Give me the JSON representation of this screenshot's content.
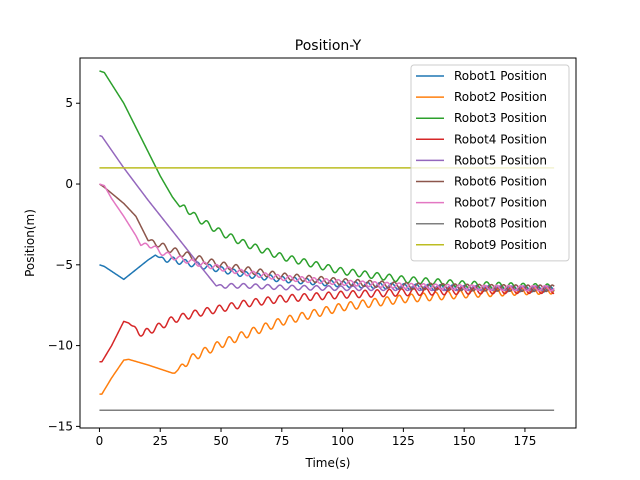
{
  "chart_data": {
    "type": "line",
    "title": "Position-Y",
    "xlabel": "Time(s)",
    "ylabel": "Position(m)",
    "xlim": [
      -8,
      196
    ],
    "ylim": [
      -15.1,
      7.8
    ],
    "xticks": [
      0,
      25,
      50,
      75,
      100,
      125,
      150,
      175
    ],
    "yticks": [
      -15,
      -10,
      -5,
      0,
      5
    ],
    "ytick_labels": [
      "−15",
      "−10",
      "−5",
      "0",
      "5"
    ],
    "grid": false,
    "legend_position": "top-right",
    "series": [
      {
        "name": "Robot1 Position",
        "color": "#1f77b4",
        "points": [
          [
            0,
            -5
          ],
          [
            2,
            -5.1
          ],
          [
            5,
            -5.4
          ],
          [
            10,
            -5.9
          ],
          [
            15,
            -5.3
          ],
          [
            20,
            -4.7
          ],
          [
            23,
            -4.4
          ],
          [
            25,
            -4.6
          ],
          [
            30,
            -4.7
          ],
          [
            40,
            -5.0
          ],
          [
            50,
            -5.3
          ],
          [
            60,
            -5.6
          ],
          [
            75,
            -5.9
          ],
          [
            100,
            -6.2
          ],
          [
            125,
            -6.35
          ],
          [
            150,
            -6.45
          ],
          [
            175,
            -6.5
          ],
          [
            187,
            -6.5
          ]
        ],
        "osc_start": 24,
        "osc_amp": 0.18,
        "osc_period": 5
      },
      {
        "name": "Robot2 Position",
        "color": "#ff7f0e",
        "points": [
          [
            0,
            -13
          ],
          [
            1,
            -13
          ],
          [
            5,
            -12
          ],
          [
            10,
            -10.9
          ],
          [
            12,
            -10.85
          ],
          [
            20,
            -11.2
          ],
          [
            30,
            -11.7
          ],
          [
            31,
            -11.7
          ],
          [
            35,
            -11.1
          ],
          [
            40,
            -10.6
          ],
          [
            50,
            -9.9
          ],
          [
            60,
            -9.3
          ],
          [
            75,
            -8.5
          ],
          [
            100,
            -7.6
          ],
          [
            125,
            -7.1
          ],
          [
            150,
            -6.8
          ],
          [
            175,
            -6.6
          ],
          [
            187,
            -6.55
          ]
        ],
        "osc_start": 32,
        "osc_amp": 0.25,
        "osc_period": 5
      },
      {
        "name": "Robot3 Position",
        "color": "#2ca02c",
        "points": [
          [
            0,
            7
          ],
          [
            2,
            6.9
          ],
          [
            10,
            5.0
          ],
          [
            20,
            2.0
          ],
          [
            25,
            0.5
          ],
          [
            30,
            -0.8
          ],
          [
            33,
            -1.4
          ],
          [
            35,
            -1.4
          ],
          [
            40,
            -2.1
          ],
          [
            50,
            -3.0
          ],
          [
            60,
            -3.7
          ],
          [
            75,
            -4.5
          ],
          [
            100,
            -5.4
          ],
          [
            125,
            -5.9
          ],
          [
            150,
            -6.2
          ],
          [
            175,
            -6.35
          ],
          [
            187,
            -6.4
          ]
        ],
        "osc_start": 33,
        "osc_amp": 0.2,
        "osc_period": 5
      },
      {
        "name": "Robot4 Position",
        "color": "#d62728",
        "points": [
          [
            0,
            -11
          ],
          [
            1,
            -11
          ],
          [
            5,
            -10
          ],
          [
            10,
            -8.5
          ],
          [
            12,
            -8.6
          ],
          [
            15,
            -9.0
          ],
          [
            18,
            -9.3
          ],
          [
            20,
            -9.1
          ],
          [
            25,
            -8.8
          ],
          [
            30,
            -8.4
          ],
          [
            40,
            -8.0
          ],
          [
            50,
            -7.7
          ],
          [
            60,
            -7.4
          ],
          [
            75,
            -7.1
          ],
          [
            100,
            -6.85
          ],
          [
            125,
            -6.7
          ],
          [
            150,
            -6.6
          ],
          [
            175,
            -6.55
          ],
          [
            187,
            -6.55
          ]
        ],
        "osc_start": 13,
        "osc_amp": 0.22,
        "osc_period": 5
      },
      {
        "name": "Robot5 Position",
        "color": "#9467bd",
        "points": [
          [
            0,
            3
          ],
          [
            1,
            2.95
          ],
          [
            10,
            1.0
          ],
          [
            20,
            -1.0
          ],
          [
            30,
            -2.9
          ],
          [
            40,
            -4.8
          ],
          [
            48,
            -6.3
          ],
          [
            50,
            -6.3
          ],
          [
            60,
            -6.3
          ],
          [
            75,
            -6.4
          ],
          [
            100,
            -6.45
          ],
          [
            125,
            -6.45
          ],
          [
            150,
            -6.45
          ],
          [
            175,
            -6.45
          ],
          [
            187,
            -6.45
          ]
        ],
        "osc_start": 48,
        "osc_amp": 0.14,
        "osc_period": 5
      },
      {
        "name": "Robot6 Position",
        "color": "#8c564b",
        "points": [
          [
            0,
            0
          ],
          [
            2,
            -0.2
          ],
          [
            10,
            -1.2
          ],
          [
            15,
            -2.0
          ],
          [
            20,
            -3.5
          ],
          [
            23,
            -3.6
          ],
          [
            25,
            -3.8
          ],
          [
            30,
            -4.1
          ],
          [
            40,
            -4.6
          ],
          [
            50,
            -5.0
          ],
          [
            60,
            -5.3
          ],
          [
            75,
            -5.7
          ],
          [
            100,
            -6.05
          ],
          [
            125,
            -6.3
          ],
          [
            150,
            -6.4
          ],
          [
            175,
            -6.45
          ],
          [
            187,
            -6.45
          ]
        ],
        "osc_start": 20,
        "osc_amp": 0.2,
        "osc_period": 5
      },
      {
        "name": "Robot7 Position",
        "color": "#e377c2",
        "points": [
          [
            0,
            0
          ],
          [
            2,
            -0.1
          ],
          [
            5,
            -0.9
          ],
          [
            10,
            -2.0
          ],
          [
            15,
            -3.2
          ],
          [
            17,
            -3.8
          ],
          [
            20,
            -3.7
          ],
          [
            25,
            -4.2
          ],
          [
            30,
            -4.5
          ],
          [
            40,
            -4.9
          ],
          [
            50,
            -5.2
          ],
          [
            60,
            -5.5
          ],
          [
            75,
            -5.8
          ],
          [
            100,
            -6.1
          ],
          [
            125,
            -6.3
          ],
          [
            150,
            -6.4
          ],
          [
            175,
            -6.45
          ],
          [
            187,
            -6.45
          ]
        ],
        "osc_start": 17,
        "osc_amp": 0.16,
        "osc_period": 5
      },
      {
        "name": "Robot8 Position",
        "color": "#7f7f7f",
        "points": [
          [
            0,
            -14
          ],
          [
            187,
            -14
          ]
        ],
        "osc_start": 999,
        "osc_amp": 0,
        "osc_period": 5
      },
      {
        "name": "Robot9 Position",
        "color": "#bcbd22",
        "points": [
          [
            0,
            1
          ],
          [
            187,
            1
          ]
        ],
        "osc_start": 999,
        "osc_amp": 0,
        "osc_period": 5
      }
    ]
  }
}
